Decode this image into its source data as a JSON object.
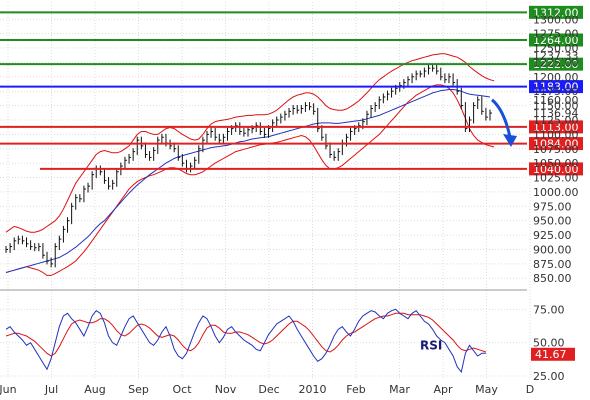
{
  "chart_data": {
    "type": "line",
    "price_panel": {
      "ylim": [
        840,
        1330
      ],
      "y_ticks": [
        850,
        875,
        900,
        925,
        950,
        975,
        1000,
        1025,
        1050,
        1075,
        1100,
        1125,
        1150,
        1175,
        1200,
        1225,
        1250,
        1275,
        1300
      ],
      "y_tick_labels": [
        "850.00",
        "875.00",
        "900.00",
        "925.00",
        "950.00",
        "975.00",
        "1000.00",
        "1025.00",
        "1050.00",
        "1075.00",
        "1100.00",
        "1125.00",
        "1150.00",
        "1175.00",
        "1200.00",
        "1225.00",
        "1250.00",
        "1275.00",
        "1300.00"
      ],
      "grid": true,
      "series": [
        {
          "key": "price",
          "values": [
            900,
            905,
            915,
            918,
            915,
            910,
            905,
            903,
            905,
            890,
            880,
            875,
            905,
            918,
            935,
            950,
            975,
            990,
            988,
            1005,
            1010,
            1030,
            1040,
            1035,
            1020,
            1010,
            1015,
            1035,
            1045,
            1055,
            1060,
            1070,
            1090,
            1080,
            1065,
            1060,
            1072,
            1090,
            1095,
            1085,
            1080,
            1075,
            1060,
            1050,
            1040,
            1045,
            1055,
            1075,
            1090,
            1100,
            1105,
            1095,
            1090,
            1095,
            1105,
            1110,
            1115,
            1105,
            1102,
            1108,
            1110,
            1115,
            1105,
            1100,
            1110,
            1120,
            1125,
            1130,
            1135,
            1140,
            1145,
            1142,
            1145,
            1150,
            1148,
            1140,
            1110,
            1095,
            1080,
            1065,
            1060,
            1070,
            1085,
            1095,
            1105,
            1110,
            1115,
            1122,
            1135,
            1145,
            1150,
            1160,
            1165,
            1170,
            1175,
            1180,
            1185,
            1190,
            1195,
            1200,
            1205,
            1205,
            1210,
            1215,
            1215,
            1210,
            1200,
            1195,
            1200,
            1190,
            1175,
            1150,
            1110,
            1125,
            1150,
            1160,
            1140,
            1130,
            1137
          ]
        },
        {
          "key": "ma50",
          "values": [
            860,
            862,
            864,
            866,
            868,
            870,
            872,
            874,
            876,
            878,
            880,
            882,
            884,
            886,
            890,
            894,
            899,
            904,
            910,
            916,
            922,
            930,
            938,
            945,
            950,
            958,
            966,
            974,
            982,
            990,
            998,
            1005,
            1012,
            1018,
            1024,
            1030,
            1035,
            1040,
            1045,
            1050,
            1054,
            1058,
            1061,
            1063,
            1065,
            1067,
            1069,
            1071,
            1073,
            1075,
            1077,
            1078,
            1079,
            1080,
            1081,
            1083,
            1085,
            1087,
            1088,
            1090,
            1092,
            1093,
            1094,
            1095,
            1096,
            1098,
            1100,
            1102,
            1104,
            1106,
            1108,
            1110,
            1112,
            1114,
            1116,
            1118,
            1119,
            1120,
            1120,
            1120,
            1119,
            1119,
            1120,
            1121,
            1122,
            1123,
            1124,
            1125,
            1127,
            1129,
            1131,
            1133,
            1136,
            1139,
            1142,
            1145,
            1148,
            1151,
            1154,
            1157,
            1160,
            1163,
            1166,
            1169,
            1172,
            1174,
            1176,
            1177,
            1178,
            1178,
            1177,
            1175,
            1172,
            1170,
            1169,
            1168,
            1167,
            1166,
            1165
          ]
        },
        {
          "key": "bb_upper",
          "values": [
            930,
            935,
            940,
            938,
            935,
            932,
            930,
            930,
            932,
            935,
            940,
            945,
            950,
            958,
            970,
            985,
            1000,
            1015,
            1025,
            1035,
            1045,
            1055,
            1065,
            1070,
            1072,
            1070,
            1068,
            1068,
            1070,
            1075,
            1080,
            1090,
            1100,
            1105,
            1105,
            1102,
            1100,
            1100,
            1105,
            1110,
            1112,
            1110,
            1105,
            1100,
            1096,
            1092,
            1090,
            1092,
            1100,
            1110,
            1118,
            1122,
            1124,
            1125,
            1126,
            1128,
            1130,
            1131,
            1132,
            1133,
            1133,
            1134,
            1134,
            1134,
            1135,
            1138,
            1142,
            1148,
            1154,
            1160,
            1165,
            1168,
            1170,
            1172,
            1172,
            1170,
            1165,
            1158,
            1150,
            1145,
            1143,
            1142,
            1142,
            1144,
            1148,
            1153,
            1158,
            1165,
            1172,
            1180,
            1188,
            1195,
            1200,
            1205,
            1210,
            1214,
            1218,
            1222,
            1225,
            1228,
            1230,
            1232,
            1234,
            1236,
            1238,
            1239,
            1240,
            1240,
            1238,
            1236,
            1234,
            1230,
            1225,
            1218,
            1212,
            1207,
            1202,
            1198,
            1195,
            1193
          ]
        },
        {
          "key": "bb_lower",
          "values": [
            860,
            862,
            864,
            866,
            868,
            870,
            868,
            866,
            864,
            860,
            855,
            855,
            858,
            862,
            866,
            870,
            875,
            880,
            888,
            896,
            905,
            915,
            925,
            935,
            945,
            955,
            965,
            975,
            985,
            995,
            1005,
            1012,
            1018,
            1022,
            1025,
            1028,
            1030,
            1033,
            1036,
            1040,
            1042,
            1042,
            1040,
            1036,
            1032,
            1030,
            1030,
            1032,
            1035,
            1040,
            1045,
            1050,
            1054,
            1058,
            1062,
            1066,
            1070,
            1072,
            1074,
            1076,
            1078,
            1080,
            1082,
            1083,
            1084,
            1085,
            1086,
            1088,
            1090,
            1092,
            1094,
            1096,
            1098,
            1096,
            1090,
            1080,
            1068,
            1056,
            1046,
            1040,
            1040,
            1042,
            1046,
            1052,
            1058,
            1064,
            1070,
            1076,
            1082,
            1088,
            1094,
            1100,
            1108,
            1116,
            1124,
            1132,
            1140,
            1148,
            1156,
            1162,
            1168,
            1172,
            1176,
            1180,
            1184,
            1186,
            1186,
            1184,
            1180,
            1172,
            1160,
            1145,
            1128,
            1110,
            1098,
            1090,
            1086,
            1082,
            1080,
            1078
          ]
        }
      ],
      "levels": [
        {
          "value": 1312.0,
          "label": "1312.00",
          "color": "#1f8c1f",
          "tag_color": "#1f8c1f"
        },
        {
          "value": 1264.0,
          "label": "1264.00",
          "color": "#1f8c1f",
          "tag_color": "#1f8c1f"
        },
        {
          "value": 1222.0,
          "label": "1222.00",
          "color": "#1f8c1f",
          "tag_color": "#1f8c1f"
        },
        {
          "value": 1183.0,
          "label": "1183.00",
          "color": "#1a1aff",
          "tag_color": "#1a1aff"
        },
        {
          "value": 1113.0,
          "label": "1113.00",
          "color": "#e02020",
          "tag_color": "#e02020"
        },
        {
          "value": 1084.0,
          "label": "1084.00",
          "color": "#e02020",
          "tag_color": "#e02020"
        },
        {
          "value": 1040.0,
          "label": "1040.00",
          "color": "#e02020",
          "tag_color": "#e02020"
        }
      ],
      "obscured_labels": [
        {
          "value": 1237.33,
          "label": "1237.33",
          "color": "#e02020"
        },
        {
          "value": 1160.0,
          "label": "1160.00",
          "color": "#333333"
        }
      ],
      "last_price": {
        "value": 1136.94,
        "label": "1136.94",
        "color": "#111111"
      },
      "forecast_arrow": {
        "from": 1160,
        "to": 1085,
        "color": "#1a4fd8"
      }
    },
    "rsi_panel": {
      "title": "RSI",
      "ylim": [
        22,
        85
      ],
      "y_ticks": [
        25,
        50,
        75
      ],
      "y_tick_labels": [
        "25.00",
        "50.00",
        "75.00"
      ],
      "series": [
        {
          "key": "rsi",
          "values": [
            60,
            62,
            58,
            55,
            52,
            48,
            50,
            45,
            40,
            35,
            30,
            38,
            50,
            62,
            70,
            72,
            68,
            65,
            60,
            55,
            62,
            70,
            74,
            72,
            65,
            55,
            50,
            48,
            55,
            62,
            68,
            70,
            65,
            60,
            55,
            50,
            48,
            52,
            58,
            62,
            55,
            45,
            40,
            38,
            42,
            50,
            58,
            65,
            70,
            68,
            62,
            55,
            50,
            54,
            60,
            62,
            58,
            55,
            52,
            50,
            48,
            45,
            44,
            50,
            56,
            60,
            64,
            66,
            68,
            70,
            66,
            60,
            55,
            50,
            45,
            40,
            36,
            38,
            42,
            48,
            55,
            60,
            62,
            58,
            55,
            60,
            66,
            70,
            72,
            74,
            73,
            70,
            68,
            72,
            74,
            75,
            72,
            70,
            68,
            72,
            74,
            70,
            66,
            64,
            60,
            55,
            52,
            50,
            45,
            40,
            32,
            28,
            42,
            48,
            44,
            40,
            42,
            42
          ]
        },
        {
          "key": "rsi_ma",
          "values": [
            55,
            56,
            57,
            57,
            56,
            55,
            53,
            51,
            48,
            45,
            42,
            40,
            42,
            47,
            53,
            59,
            64,
            66,
            67,
            66,
            65,
            65,
            66,
            68,
            68,
            66,
            63,
            59,
            56,
            55,
            57,
            60,
            63,
            64,
            63,
            61,
            58,
            55,
            54,
            55,
            56,
            55,
            52,
            48,
            45,
            44,
            46,
            50,
            56,
            61,
            63,
            63,
            61,
            58,
            57,
            57,
            58,
            58,
            57,
            56,
            54,
            52,
            50,
            49,
            50,
            52,
            55,
            58,
            61,
            64,
            66,
            66,
            64,
            62,
            59,
            55,
            51,
            47,
            44,
            43,
            45,
            48,
            52,
            55,
            57,
            58,
            60,
            62,
            64,
            66,
            68,
            69,
            70,
            70,
            71,
            72,
            72,
            72,
            71,
            71,
            71,
            71,
            70,
            69,
            67,
            64,
            61,
            58,
            55,
            52,
            48,
            45,
            44,
            45,
            46,
            45,
            44,
            43
          ]
        }
      ],
      "last_rsi": {
        "value": 41.67,
        "label": "41.67",
        "color": "#e02020"
      }
    },
    "x_axis": {
      "labels": [
        "Jun",
        "Jul",
        "Aug",
        "Sep",
        "Oct",
        "Nov",
        "Dec",
        "2010",
        "Feb",
        "Mar",
        "Apr",
        "May",
        "D"
      ]
    },
    "colors": {
      "price": "#111111",
      "ma50": "#2233bb",
      "bollinger": "#dd1111",
      "rsi": "#2233bb",
      "rsi_ma": "#dd1111",
      "grid": "#dddddd"
    }
  }
}
